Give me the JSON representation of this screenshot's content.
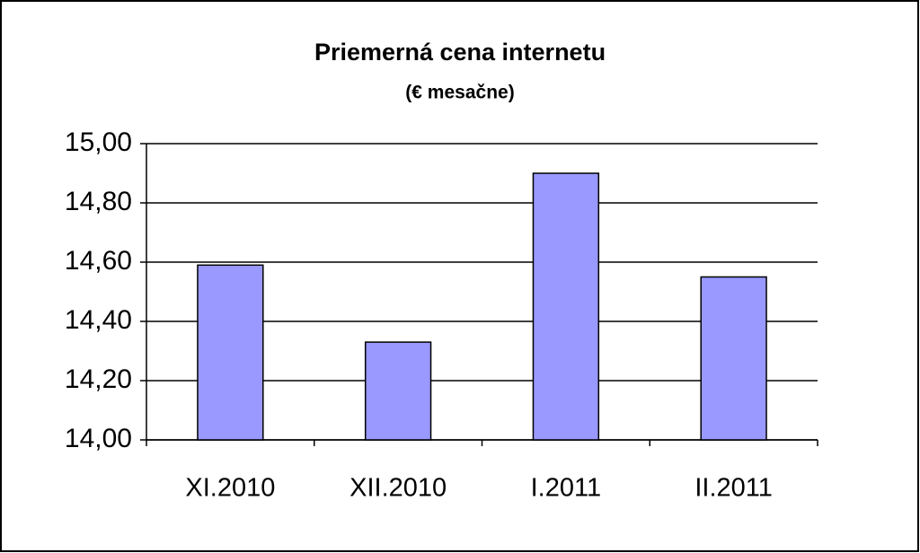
{
  "chart_data": {
    "type": "bar",
    "title": "Priemerná cena internetu",
    "subtitle": "(€ mesačne)",
    "categories": [
      "XI.2010",
      "XII.2010",
      "I.2011",
      "II.2011"
    ],
    "values": [
      14.59,
      14.33,
      14.9,
      14.55
    ],
    "color": "#9999ff",
    "ylim": [
      14,
      15
    ],
    "yticks": [
      {
        "value": 14,
        "label": "14,00"
      },
      {
        "value": 14.2,
        "label": "14,20"
      },
      {
        "value": 14.4,
        "label": "14,40"
      },
      {
        "value": 14.6,
        "label": "14,60"
      },
      {
        "value": 14.8,
        "label": "14,80"
      },
      {
        "value": 15,
        "label": "15,00"
      }
    ],
    "grid": true
  }
}
